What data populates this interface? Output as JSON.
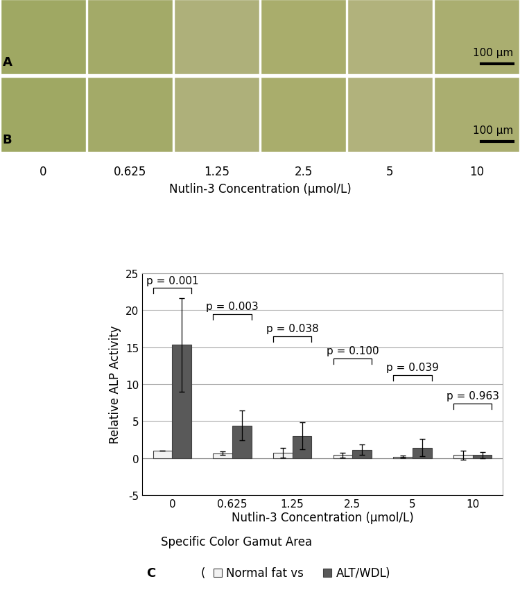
{
  "chart_data": {
    "type": "bar",
    "categories": [
      "0",
      "0.625",
      "1.25",
      "2.5",
      "5",
      "10"
    ],
    "x_label": "Nutlin-3 Concentration (µmol/L)",
    "y_label": "Relative ALP Activity",
    "ylim": [
      -5,
      25
    ],
    "yticks": [
      -5,
      0,
      5,
      10,
      15,
      20,
      25
    ],
    "grid": true,
    "series": [
      {
        "name": "Normal fat vs",
        "color": "#f2f2f2",
        "values": [
          1.0,
          0.65,
          0.7,
          0.4,
          0.2,
          0.4
        ],
        "errors": [
          0.0,
          0.25,
          0.65,
          0.3,
          0.15,
          0.6
        ]
      },
      {
        "name": "ALT/WDL",
        "color": "#595959",
        "values": [
          15.3,
          4.4,
          3.0,
          1.1,
          1.4,
          0.4
        ],
        "errors": [
          6.3,
          2.0,
          1.85,
          0.7,
          1.15,
          0.45
        ]
      }
    ],
    "annotations": [
      "p = 0.001",
      "p = 0.003",
      "p = 0.038",
      "p = 0.100",
      "p = 0.039",
      "p = 0.963"
    ],
    "caption": "Specific Color Gamut Area",
    "panel_label": "C",
    "legend_brackets": [
      "(",
      ")"
    ]
  },
  "panels": {
    "labels": [
      "A",
      "B"
    ],
    "scale_bar": "100 µm",
    "concentrations": [
      "0",
      "0.625",
      "1.25",
      "2.5",
      "5",
      "10"
    ],
    "concentration_label": "Nutlin-3 Concentration (µmol/L)"
  }
}
